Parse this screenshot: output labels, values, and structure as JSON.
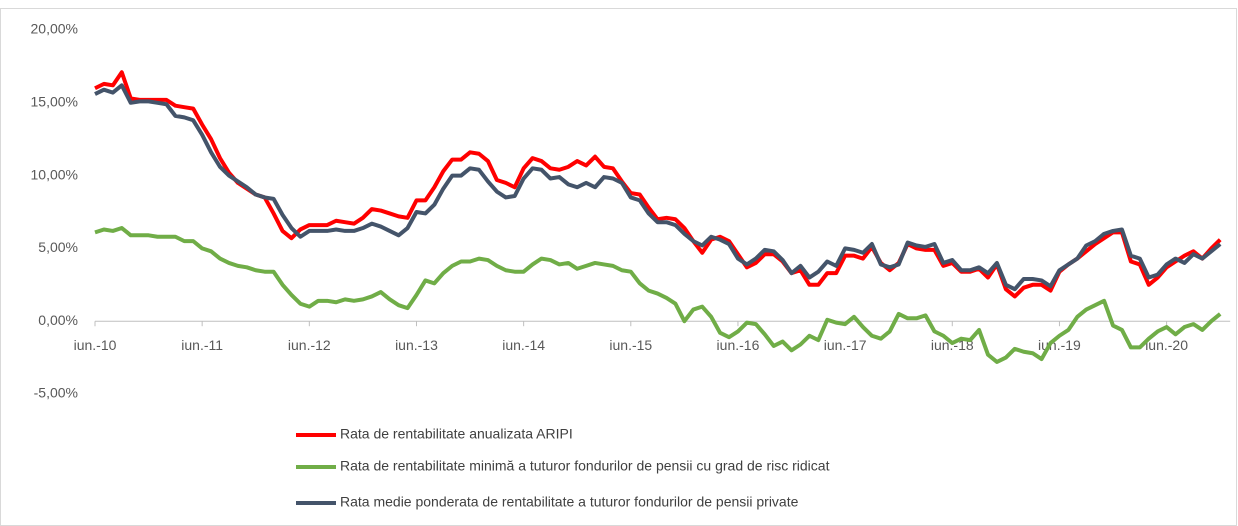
{
  "chart_data": {
    "type": "line",
    "categories": [
      "iun.-10",
      null,
      null,
      null,
      null,
      null,
      null,
      null,
      null,
      null,
      null,
      null,
      "iun.-11",
      null,
      null,
      null,
      null,
      null,
      null,
      null,
      null,
      null,
      null,
      null,
      "iun.-12",
      null,
      null,
      null,
      null,
      null,
      null,
      null,
      null,
      null,
      null,
      null,
      "iun.-13",
      null,
      null,
      null,
      null,
      null,
      null,
      null,
      null,
      null,
      null,
      null,
      "iun.-14",
      null,
      null,
      null,
      null,
      null,
      null,
      null,
      null,
      null,
      null,
      null,
      "iun.-15",
      null,
      null,
      null,
      null,
      null,
      null,
      null,
      null,
      null,
      null,
      null,
      "iun.-16",
      null,
      null,
      null,
      null,
      null,
      null,
      null,
      null,
      null,
      null,
      null,
      "iun.-17",
      null,
      null,
      null,
      null,
      null,
      null,
      null,
      null,
      null,
      null,
      null,
      "iun.-18",
      null,
      null,
      null,
      null,
      null,
      null,
      null,
      null,
      null,
      null,
      null,
      "iun.-19",
      null,
      null,
      null,
      null,
      null,
      null,
      null,
      null,
      null,
      null,
      null,
      "iun.-20",
      null,
      null,
      null,
      null,
      null,
      null
    ],
    "series": [
      {
        "name": "Rata de rentabilitate anualizata ARIPI",
        "color": "#ff0000",
        "values": [
          16.0,
          16.3,
          16.2,
          17.1,
          15.3,
          15.2,
          15.2,
          15.2,
          15.2,
          14.8,
          14.7,
          14.6,
          13.5,
          12.5,
          11.2,
          10.2,
          9.5,
          9.1,
          8.7,
          8.5,
          7.4,
          6.2,
          5.7,
          6.3,
          6.6,
          6.6,
          6.6,
          6.9,
          6.8,
          6.7,
          7.1,
          7.7,
          7.6,
          7.4,
          7.2,
          7.1,
          8.3,
          8.3,
          9.2,
          10.3,
          11.1,
          11.1,
          11.6,
          11.5,
          11.0,
          9.7,
          9.5,
          9.2,
          10.5,
          11.2,
          11.0,
          10.5,
          10.4,
          10.6,
          11.0,
          10.7,
          11.3,
          10.6,
          10.5,
          9.6,
          8.8,
          8.7,
          7.8,
          7.0,
          7.1,
          7.0,
          6.4,
          5.5,
          4.7,
          5.6,
          5.8,
          5.5,
          4.6,
          3.7,
          4.0,
          4.6,
          4.6,
          4.1,
          3.3,
          3.5,
          2.5,
          2.5,
          3.3,
          3.3,
          4.5,
          4.5,
          4.3,
          5.1,
          4.0,
          3.5,
          4.0,
          5.3,
          5.0,
          4.9,
          4.9,
          3.8,
          4.0,
          3.4,
          3.4,
          3.6,
          3.0,
          3.9,
          2.2,
          1.7,
          2.3,
          2.5,
          2.5,
          2.1,
          3.4,
          3.9,
          4.3,
          4.8,
          5.3,
          5.7,
          6.1,
          6.1,
          4.1,
          3.9,
          2.5,
          3.0,
          3.7,
          4.1,
          4.5,
          4.8,
          4.3,
          5.0,
          5.6
        ]
      },
      {
        "name": "Rata de rentabilitate minimă a tuturor fondurilor de pensii cu grad de risc ridicat",
        "color": "#70ad47",
        "values": [
          6.1,
          6.3,
          6.2,
          6.4,
          5.9,
          5.9,
          5.9,
          5.8,
          5.8,
          5.8,
          5.5,
          5.5,
          5.0,
          4.8,
          4.3,
          4.0,
          3.8,
          3.7,
          3.5,
          3.4,
          3.4,
          2.5,
          1.8,
          1.2,
          1.0,
          1.4,
          1.4,
          1.3,
          1.5,
          1.4,
          1.5,
          1.7,
          2.0,
          1.5,
          1.1,
          0.9,
          1.8,
          2.8,
          2.6,
          3.3,
          3.8,
          4.1,
          4.1,
          4.3,
          4.2,
          3.8,
          3.5,
          3.4,
          3.4,
          3.9,
          4.3,
          4.2,
          3.9,
          4.0,
          3.6,
          3.8,
          4.0,
          3.9,
          3.8,
          3.5,
          3.4,
          2.6,
          2.1,
          1.9,
          1.6,
          1.2,
          0.0,
          0.8,
          1.0,
          0.3,
          -0.8,
          -1.1,
          -0.7,
          -0.1,
          -0.2,
          -0.9,
          -1.7,
          -1.4,
          -2.0,
          -1.6,
          -1.0,
          -1.3,
          0.1,
          -0.1,
          -0.2,
          0.3,
          -0.4,
          -1.0,
          -1.2,
          -0.7,
          0.5,
          0.2,
          0.2,
          0.4,
          -0.7,
          -1.0,
          -1.5,
          -1.2,
          -1.3,
          -0.6,
          -2.3,
          -2.8,
          -2.5,
          -1.9,
          -2.1,
          -2.2,
          -2.6,
          -1.5,
          -1.0,
          -0.6,
          0.3,
          0.8,
          1.1,
          1.4,
          -0.3,
          -0.6,
          -1.8,
          -1.8,
          -1.2,
          -0.7,
          -0.4,
          -0.9,
          -0.4,
          -0.2,
          -0.6,
          0.0,
          0.5
        ]
      },
      {
        "name": "Rata medie ponderata de rentabilitate a tuturor fondurilor de pensii private",
        "color": "#44546a",
        "values": [
          15.6,
          15.9,
          15.7,
          16.2,
          15.0,
          15.1,
          15.1,
          15.0,
          14.9,
          14.1,
          14.0,
          13.8,
          12.8,
          11.6,
          10.6,
          10.0,
          9.6,
          9.2,
          8.7,
          8.5,
          8.4,
          7.3,
          6.4,
          5.8,
          6.2,
          6.2,
          6.2,
          6.3,
          6.2,
          6.2,
          6.4,
          6.7,
          6.5,
          6.2,
          5.9,
          6.4,
          7.5,
          7.4,
          8.0,
          9.1,
          10.0,
          10.0,
          10.5,
          10.4,
          9.6,
          8.9,
          8.5,
          8.6,
          9.8,
          10.5,
          10.4,
          9.8,
          9.9,
          9.4,
          9.2,
          9.5,
          9.2,
          9.9,
          9.8,
          9.5,
          8.5,
          8.3,
          7.4,
          6.8,
          6.8,
          6.6,
          6.0,
          5.5,
          5.2,
          5.8,
          5.6,
          5.3,
          4.3,
          3.9,
          4.3,
          4.9,
          4.8,
          4.2,
          3.3,
          3.8,
          3.0,
          3.4,
          4.1,
          3.8,
          5.0,
          4.9,
          4.7,
          5.3,
          3.9,
          3.7,
          3.9,
          5.4,
          5.2,
          5.1,
          5.3,
          4.0,
          4.2,
          3.5,
          3.5,
          3.7,
          3.3,
          4.0,
          2.5,
          2.2,
          2.9,
          2.9,
          2.8,
          2.4,
          3.5,
          3.9,
          4.3,
          5.2,
          5.5,
          6.0,
          6.2,
          6.3,
          4.5,
          4.3,
          3.0,
          3.2,
          3.9,
          4.3,
          4.0,
          4.6,
          4.3,
          4.8,
          5.3
        ]
      }
    ],
    "ylim": [
      -5,
      20
    ],
    "yticks": [
      {
        "value": -5,
        "label": "-5,00%"
      },
      {
        "value": 0,
        "label": "0,00%"
      },
      {
        "value": 5,
        "label": "5,00%"
      },
      {
        "value": 10,
        "label": "10,00%"
      },
      {
        "value": 15,
        "label": "15,00%"
      },
      {
        "value": 20,
        "label": "20,00%"
      }
    ],
    "grid": false
  }
}
